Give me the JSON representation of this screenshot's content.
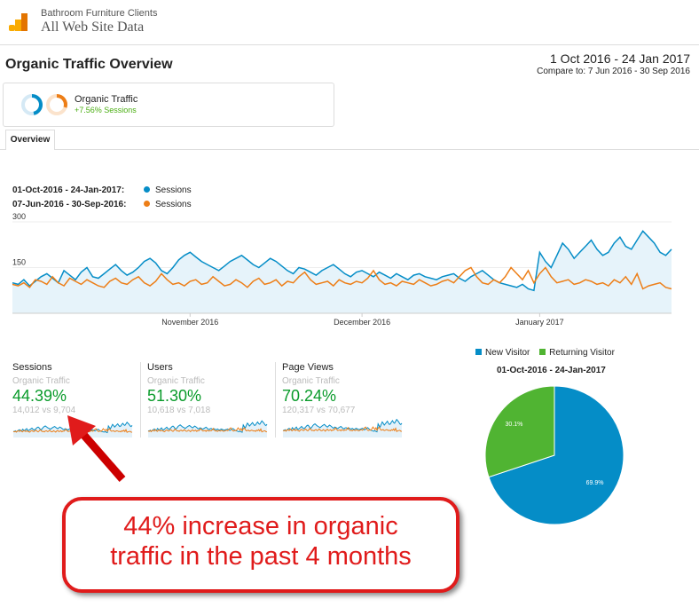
{
  "header": {
    "account": "Bathroom Furniture Clients",
    "property": "All Web Site Data"
  },
  "page": {
    "title": "Organic Traffic Overview",
    "date_range": "1 Oct 2016 - 24 Jan 2017",
    "compare": "Compare to: 7 Jun 2016 - 30 Sep 2016"
  },
  "segment": {
    "name": "Organic Traffic",
    "summary": "+7.56% Sessions"
  },
  "tabs": [
    {
      "label": "Overview"
    }
  ],
  "legend": [
    {
      "range": "01-Oct-2016 - 24-Jan-2017:",
      "metric": "Sessions",
      "color": "#058dc7"
    },
    {
      "range": "07-Jun-2016 - 30-Sep-2016:",
      "metric": "Sessions",
      "color": "#ed7e17"
    }
  ],
  "chart_data": [
    {
      "type": "line",
      "yticks": [
        "300",
        "150"
      ],
      "ylim": [
        0,
        350
      ],
      "xticks": [
        "November 2016",
        "December 2016",
        "January 2017"
      ],
      "series": [
        {
          "name": "Sessions",
          "values": [
            100,
            95,
            110,
            90,
            105,
            120,
            130,
            115,
            100,
            140,
            125,
            110,
            135,
            150,
            120,
            115,
            130,
            145,
            160,
            140,
            125,
            135,
            150,
            170,
            180,
            165,
            140,
            130,
            150,
            175,
            190,
            200,
            185,
            170,
            160,
            150,
            140,
            155,
            170,
            180,
            190,
            175,
            160,
            150,
            165,
            180,
            170,
            155,
            140,
            130,
            150,
            145,
            135,
            125,
            140,
            150,
            160,
            145,
            130,
            120,
            135,
            140,
            130,
            120,
            135,
            125,
            115,
            130,
            120,
            110,
            125,
            130,
            120,
            115,
            110,
            120,
            125,
            130,
            115,
            105,
            120,
            130,
            140,
            125,
            110,
            100,
            95,
            90,
            85,
            95,
            80,
            75,
            200,
            170,
            150,
            190,
            230,
            210,
            180,
            200,
            220,
            240,
            210,
            190,
            200,
            230,
            250,
            220,
            210,
            240,
            270,
            250,
            230,
            200,
            190,
            210
          ]
        },
        {
          "name": "Sessions",
          "values": [
            95,
            90,
            100,
            85,
            110,
            105,
            95,
            120,
            100,
            90,
            115,
            105,
            95,
            110,
            100,
            90,
            85,
            105,
            115,
            100,
            95,
            110,
            120,
            100,
            90,
            105,
            130,
            110,
            95,
            100,
            90,
            105,
            110,
            95,
            100,
            120,
            105,
            90,
            95,
            110,
            100,
            85,
            105,
            115,
            95,
            100,
            110,
            90,
            105,
            100,
            120,
            135,
            110,
            95,
            100,
            105,
            90,
            110,
            100,
            95,
            105,
            100,
            115,
            140,
            110,
            95,
            100,
            90,
            105,
            100,
            95,
            110,
            100,
            90,
            95,
            105,
            110,
            100,
            120,
            140,
            150,
            120,
            100,
            95,
            110,
            100,
            120,
            150,
            130,
            110,
            140,
            100,
            130,
            150,
            120,
            100,
            105,
            110,
            95,
            100,
            110,
            105,
            95,
            100,
            90,
            110,
            100,
            120,
            95,
            130,
            80,
            90,
            95,
            100,
            85,
            80
          ]
        }
      ]
    },
    {
      "type": "pie",
      "title": "01-Oct-2016 - 24-Jan-2017",
      "legend": [
        "New Visitor",
        "Returning Visitor"
      ],
      "values": [
        69.9,
        30.1
      ],
      "labels": [
        "69.9%",
        "30.1%"
      ],
      "colors": [
        "#058dc7",
        "#50b432"
      ]
    }
  ],
  "metrics": [
    {
      "label": "Sessions",
      "segment": "Organic Traffic",
      "value": "44.39%",
      "compare": "14,012 vs 9,704"
    },
    {
      "label": "Users",
      "segment": "Organic Traffic",
      "value": "51.30%",
      "compare": "10,618 vs 7,018"
    },
    {
      "label": "Page Views",
      "segment": "Organic Traffic",
      "value": "70.24%",
      "compare": "120,317 vs 70,677"
    }
  ],
  "annotation": {
    "line1": "44% increase in organic",
    "line2": "traffic in the past 4 months"
  }
}
